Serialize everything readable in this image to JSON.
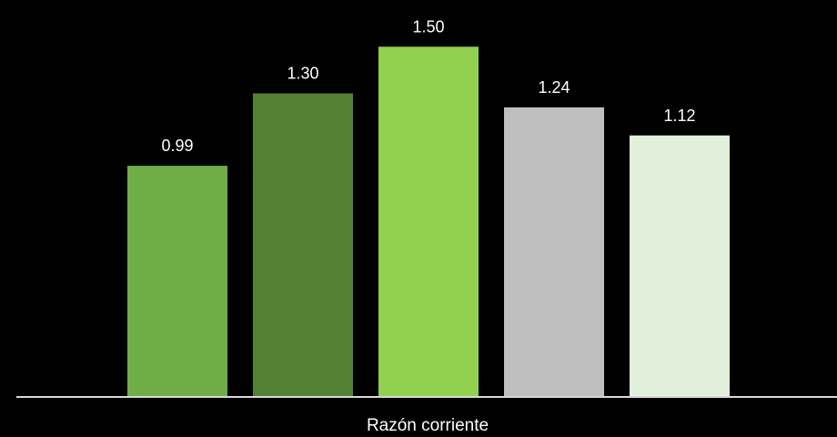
{
  "chart_data": {
    "type": "bar",
    "categories": [
      "Razón corriente"
    ],
    "series": [
      {
        "values": [
          0.99
        ],
        "color": "#70ad47"
      },
      {
        "values": [
          1.3
        ],
        "color": "#548235"
      },
      {
        "values": [
          1.5
        ],
        "color": "#92d050"
      },
      {
        "values": [
          1.24
        ],
        "color": "#bfbfbf"
      },
      {
        "values": [
          1.12
        ],
        "color": "#e2efda"
      }
    ],
    "data_labels": [
      "0.99",
      "1.30",
      "1.50",
      "1.24",
      "1.12"
    ],
    "ylim": [
      0,
      1.7
    ],
    "grid": false,
    "legend": "none",
    "background": "#000000",
    "axis_color": "#d9d9d9",
    "label_color": "#ffffff"
  }
}
